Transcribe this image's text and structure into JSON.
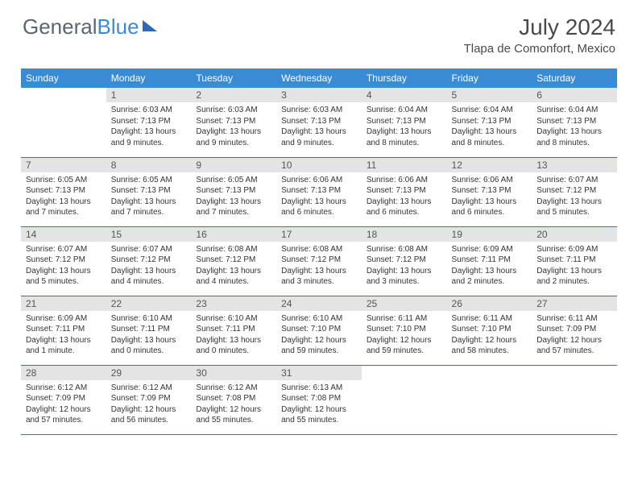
{
  "brand": {
    "part1": "General",
    "part2": "Blue"
  },
  "title": "July 2024",
  "location": "Tlapa de Comonfort, Mexico",
  "colors": {
    "header_bg": "#3b8bd4",
    "header_text": "#ffffff",
    "daynum_bg": "#e4e4e4",
    "row_border": "#3b72a8",
    "body_text": "#333333",
    "title_text": "#4a4a4a",
    "logo_gray": "#5a6570",
    "logo_blue": "#3b8bd4"
  },
  "day_headers": [
    "Sunday",
    "Monday",
    "Tuesday",
    "Wednesday",
    "Thursday",
    "Friday",
    "Saturday"
  ],
  "weeks": [
    [
      {
        "empty": true
      },
      {
        "n": "1",
        "sr": "6:03 AM",
        "ss": "7:13 PM",
        "dl": "13 hours and 9 minutes."
      },
      {
        "n": "2",
        "sr": "6:03 AM",
        "ss": "7:13 PM",
        "dl": "13 hours and 9 minutes."
      },
      {
        "n": "3",
        "sr": "6:03 AM",
        "ss": "7:13 PM",
        "dl": "13 hours and 9 minutes."
      },
      {
        "n": "4",
        "sr": "6:04 AM",
        "ss": "7:13 PM",
        "dl": "13 hours and 8 minutes."
      },
      {
        "n": "5",
        "sr": "6:04 AM",
        "ss": "7:13 PM",
        "dl": "13 hours and 8 minutes."
      },
      {
        "n": "6",
        "sr": "6:04 AM",
        "ss": "7:13 PM",
        "dl": "13 hours and 8 minutes."
      }
    ],
    [
      {
        "n": "7",
        "sr": "6:05 AM",
        "ss": "7:13 PM",
        "dl": "13 hours and 7 minutes."
      },
      {
        "n": "8",
        "sr": "6:05 AM",
        "ss": "7:13 PM",
        "dl": "13 hours and 7 minutes."
      },
      {
        "n": "9",
        "sr": "6:05 AM",
        "ss": "7:13 PM",
        "dl": "13 hours and 7 minutes."
      },
      {
        "n": "10",
        "sr": "6:06 AM",
        "ss": "7:13 PM",
        "dl": "13 hours and 6 minutes."
      },
      {
        "n": "11",
        "sr": "6:06 AM",
        "ss": "7:13 PM",
        "dl": "13 hours and 6 minutes."
      },
      {
        "n": "12",
        "sr": "6:06 AM",
        "ss": "7:13 PM",
        "dl": "13 hours and 6 minutes."
      },
      {
        "n": "13",
        "sr": "6:07 AM",
        "ss": "7:12 PM",
        "dl": "13 hours and 5 minutes."
      }
    ],
    [
      {
        "n": "14",
        "sr": "6:07 AM",
        "ss": "7:12 PM",
        "dl": "13 hours and 5 minutes."
      },
      {
        "n": "15",
        "sr": "6:07 AM",
        "ss": "7:12 PM",
        "dl": "13 hours and 4 minutes."
      },
      {
        "n": "16",
        "sr": "6:08 AM",
        "ss": "7:12 PM",
        "dl": "13 hours and 4 minutes."
      },
      {
        "n": "17",
        "sr": "6:08 AM",
        "ss": "7:12 PM",
        "dl": "13 hours and 3 minutes."
      },
      {
        "n": "18",
        "sr": "6:08 AM",
        "ss": "7:12 PM",
        "dl": "13 hours and 3 minutes."
      },
      {
        "n": "19",
        "sr": "6:09 AM",
        "ss": "7:11 PM",
        "dl": "13 hours and 2 minutes."
      },
      {
        "n": "20",
        "sr": "6:09 AM",
        "ss": "7:11 PM",
        "dl": "13 hours and 2 minutes."
      }
    ],
    [
      {
        "n": "21",
        "sr": "6:09 AM",
        "ss": "7:11 PM",
        "dl": "13 hours and 1 minute."
      },
      {
        "n": "22",
        "sr": "6:10 AM",
        "ss": "7:11 PM",
        "dl": "13 hours and 0 minutes."
      },
      {
        "n": "23",
        "sr": "6:10 AM",
        "ss": "7:11 PM",
        "dl": "13 hours and 0 minutes."
      },
      {
        "n": "24",
        "sr": "6:10 AM",
        "ss": "7:10 PM",
        "dl": "12 hours and 59 minutes."
      },
      {
        "n": "25",
        "sr": "6:11 AM",
        "ss": "7:10 PM",
        "dl": "12 hours and 59 minutes."
      },
      {
        "n": "26",
        "sr": "6:11 AM",
        "ss": "7:10 PM",
        "dl": "12 hours and 58 minutes."
      },
      {
        "n": "27",
        "sr": "6:11 AM",
        "ss": "7:09 PM",
        "dl": "12 hours and 57 minutes."
      }
    ],
    [
      {
        "n": "28",
        "sr": "6:12 AM",
        "ss": "7:09 PM",
        "dl": "12 hours and 57 minutes."
      },
      {
        "n": "29",
        "sr": "6:12 AM",
        "ss": "7:09 PM",
        "dl": "12 hours and 56 minutes."
      },
      {
        "n": "30",
        "sr": "6:12 AM",
        "ss": "7:08 PM",
        "dl": "12 hours and 55 minutes."
      },
      {
        "n": "31",
        "sr": "6:13 AM",
        "ss": "7:08 PM",
        "dl": "12 hours and 55 minutes."
      },
      {
        "empty": true
      },
      {
        "empty": true
      },
      {
        "empty": true
      }
    ]
  ],
  "labels": {
    "sunrise": "Sunrise:",
    "sunset": "Sunset:",
    "daylight": "Daylight:"
  }
}
